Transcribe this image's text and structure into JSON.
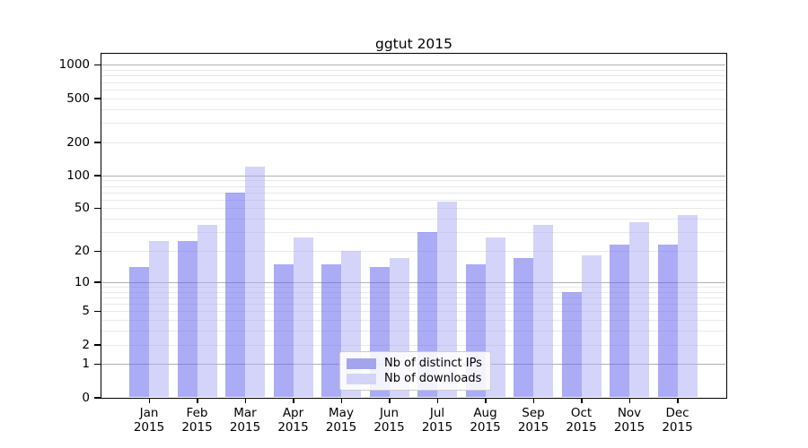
{
  "title": "ggtut 2015",
  "chart_data": {
    "type": "bar",
    "title": "ggtut 2015",
    "scale": "log1p",
    "categories": [
      "Jan",
      "Feb",
      "Mar",
      "Apr",
      "May",
      "Jun",
      "Jul",
      "Aug",
      "Sep",
      "Oct",
      "Nov",
      "Dec"
    ],
    "year": "2015",
    "series": [
      {
        "name": "Nb of distinct IPs",
        "color": "rgba(102,102,238,0.55)",
        "legend_color": "#a4a4ee",
        "values": [
          14,
          25,
          70,
          15,
          15,
          14,
          30,
          15,
          17,
          8,
          23,
          23
        ]
      },
      {
        "name": "Nb of downloads",
        "color": "rgba(170,170,245,0.50)",
        "legend_color": "#d4d4f6",
        "values": [
          25,
          35,
          120,
          27,
          20,
          17,
          57,
          27,
          35,
          18,
          37,
          43
        ]
      }
    ],
    "y_ticks": [
      0,
      1,
      2,
      5,
      10,
      20,
      50,
      100,
      200,
      500,
      1000
    ],
    "ylim": [
      0,
      1260
    ],
    "xlabel": "",
    "ylabel": "",
    "grid": true,
    "legend_position": "lower-center-inside",
    "colors": {
      "major_grid": "#b0b0b0",
      "minor_grid": "#e9e9e9",
      "axis": "#000000",
      "background": "#ffffff"
    }
  }
}
